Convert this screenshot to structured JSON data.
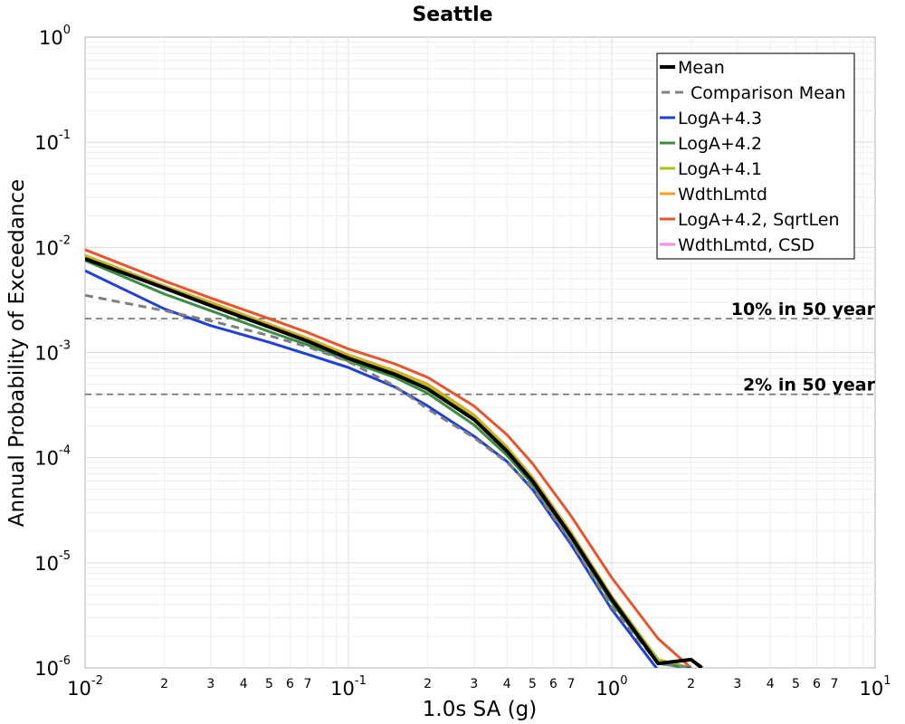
{
  "chart_data": {
    "type": "line",
    "title": "Seattle",
    "xlabel": "1.0s SA (g)",
    "ylabel": "Annual Probability of Exceedance",
    "xscale": "log",
    "yscale": "log",
    "xlim": [
      0.01,
      10
    ],
    "ylim": [
      1e-06,
      1
    ],
    "grid": true,
    "legend_position": "top-right",
    "x_major_ticks": [
      {
        "base": "10",
        "exp": "-2",
        "value": 0.01
      },
      {
        "base": "10",
        "exp": "-1",
        "value": 0.1
      },
      {
        "base": "10",
        "exp": "0",
        "value": 1
      },
      {
        "base": "10",
        "exp": "1",
        "value": 10
      }
    ],
    "x_minor_tick_labels": [
      "2",
      "3",
      "4",
      "5",
      "6",
      "7"
    ],
    "y_major_ticks": [
      {
        "base": "10",
        "exp": "0",
        "value": 1
      },
      {
        "base": "10",
        "exp": "-1",
        "value": 0.1
      },
      {
        "base": "10",
        "exp": "-2",
        "value": 0.01
      },
      {
        "base": "10",
        "exp": "-3",
        "value": 0.001
      },
      {
        "base": "10",
        "exp": "-4",
        "value": 0.0001
      },
      {
        "base": "10",
        "exp": "-5",
        "value": 1e-05
      },
      {
        "base": "10",
        "exp": "-6",
        "value": 1e-06
      }
    ],
    "reference_lines": [
      {
        "label": "10% in 50 year",
        "y": 0.0021
      },
      {
        "label": "2% in 50 year",
        "y": 0.0004
      }
    ],
    "series": [
      {
        "name": "Mean",
        "color": "#000000",
        "style": "solid",
        "width": 4,
        "x": [
          0.01,
          0.02,
          0.03,
          0.05,
          0.07,
          0.1,
          0.15,
          0.2,
          0.3,
          0.4,
          0.5,
          0.7,
          1.0,
          1.5,
          2.0,
          2.2
        ],
        "y": [
          0.0078,
          0.0041,
          0.0028,
          0.00175,
          0.00128,
          0.00088,
          0.00062,
          0.00045,
          0.00023,
          0.000115,
          6e-05,
          1.8e-05,
          4.5e-06,
          1.1e-06,
          1.2e-06,
          1e-06
        ]
      },
      {
        "name": "Comparison Mean",
        "color": "#808080",
        "style": "dashed",
        "width": 3,
        "x": [
          0.01,
          0.02,
          0.03,
          0.05,
          0.07,
          0.1,
          0.15,
          0.2,
          0.3,
          0.4,
          0.5,
          0.7,
          1.0,
          1.5,
          2.0
        ],
        "y": [
          0.0035,
          0.0025,
          0.002,
          0.00145,
          0.00113,
          0.00082,
          0.00048,
          0.00029,
          0.000155,
          9e-05,
          5.2e-05,
          1.6e-05,
          3.8e-06,
          1.1e-06,
          1e-06
        ]
      },
      {
        "name": "LogA+4.3",
        "color": "#1f3fd6",
        "style": "solid",
        "width": 3,
        "x": [
          0.01,
          0.02,
          0.03,
          0.05,
          0.07,
          0.1,
          0.15,
          0.2,
          0.3,
          0.4,
          0.5,
          0.7,
          1.0,
          1.5,
          2.0
        ],
        "y": [
          0.006,
          0.0026,
          0.0018,
          0.00125,
          0.00096,
          0.00072,
          0.00047,
          0.00031,
          0.00016,
          9.2e-05,
          5e-05,
          1.5e-05,
          3.6e-06,
          9.5e-07,
          1e-06
        ]
      },
      {
        "name": "LogA+4.2",
        "color": "#3a8c43",
        "style": "solid",
        "width": 3,
        "x": [
          0.01,
          0.02,
          0.03,
          0.05,
          0.07,
          0.1,
          0.15,
          0.2,
          0.3,
          0.4,
          0.5,
          0.7,
          1.0,
          1.5,
          2.0
        ],
        "y": [
          0.0075,
          0.0036,
          0.0025,
          0.00158,
          0.00118,
          0.00083,
          0.00058,
          0.00041,
          0.000205,
          0.000105,
          5.6e-05,
          1.7e-05,
          4.2e-06,
          1.1e-06,
          1e-06
        ]
      },
      {
        "name": "LogA+4.1",
        "color": "#a8c31a",
        "style": "solid",
        "width": 3,
        "x": [
          0.01,
          0.02,
          0.03,
          0.05,
          0.07,
          0.1,
          0.15,
          0.2,
          0.3,
          0.4,
          0.5,
          0.7,
          1.0,
          1.5,
          2.0
        ],
        "y": [
          0.0082,
          0.0042,
          0.0029,
          0.0018,
          0.00133,
          0.00092,
          0.00065,
          0.00048,
          0.000245,
          0.000122,
          6.3e-05,
          1.9e-05,
          4.7e-06,
          1.2e-06,
          1e-06
        ]
      },
      {
        "name": "WdthLmtd",
        "color": "#f0a020",
        "style": "solid",
        "width": 3,
        "x": [
          0.01,
          0.02,
          0.03,
          0.05,
          0.07,
          0.1,
          0.15,
          0.2,
          0.3,
          0.4,
          0.5,
          0.7,
          1.0,
          1.5,
          2.0
        ],
        "y": [
          0.0084,
          0.0043,
          0.003,
          0.00186,
          0.00137,
          0.00095,
          0.00067,
          0.0005,
          0.000255,
          0.000126,
          6.5e-05,
          1.95e-05,
          4.8e-06,
          1.2e-06,
          1e-06
        ]
      },
      {
        "name": "LogA+4.2, SqrtLen",
        "color": "#e8552a",
        "style": "solid",
        "width": 3,
        "x": [
          0.01,
          0.02,
          0.03,
          0.05,
          0.07,
          0.1,
          0.15,
          0.2,
          0.3,
          0.4,
          0.5,
          0.7,
          1.0,
          1.5,
          2.0
        ],
        "y": [
          0.0095,
          0.0048,
          0.0033,
          0.0021,
          0.00155,
          0.00108,
          0.00078,
          0.00058,
          0.00031,
          0.000165,
          8.8e-05,
          2.8e-05,
          7.2e-06,
          1.9e-06,
          1e-06
        ]
      },
      {
        "name": "WdthLmtd, CSD",
        "color": "#ff88e0",
        "style": "solid",
        "width": 3,
        "x": [],
        "y": []
      }
    ]
  }
}
